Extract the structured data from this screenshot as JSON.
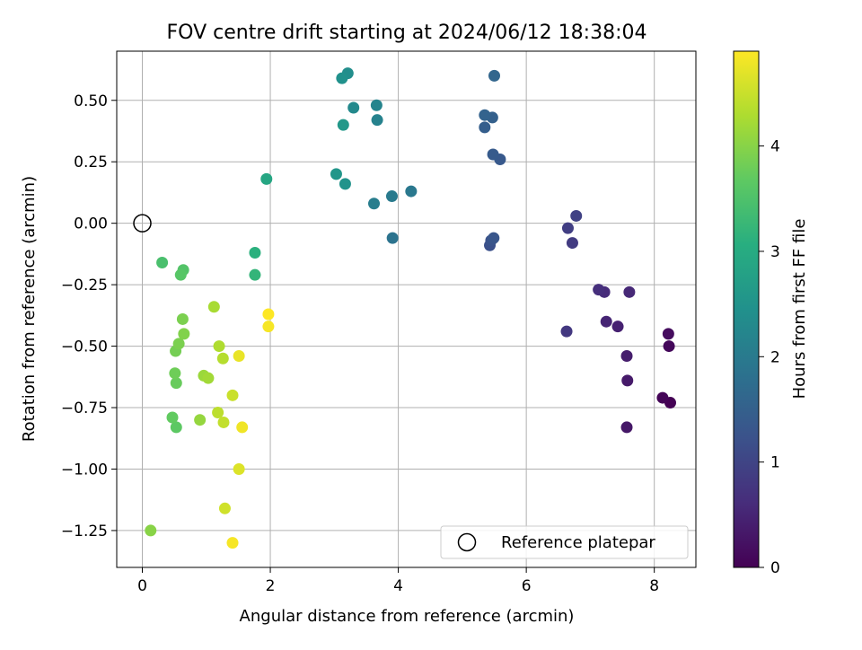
{
  "chart_data": {
    "type": "scatter",
    "title": "FOV centre drift starting at 2024/06/12 18:38:04",
    "xlabel": "Angular distance from reference (arcmin)",
    "ylabel": "Rotation from reference (arcmin)",
    "xlim": [
      -0.4,
      8.65
    ],
    "ylim": [
      -1.4,
      0.7
    ],
    "xticks": [
      0,
      2,
      4,
      6,
      8
    ],
    "xtick_labels": [
      "0",
      "2",
      "4",
      "6",
      "8"
    ],
    "yticks": [
      0.5,
      0.25,
      0.0,
      -0.25,
      -0.5,
      -0.75,
      -1.0,
      -1.25
    ],
    "ytick_labels": [
      "0.50",
      "0.25",
      "0.00",
      "−0.25",
      "−0.50",
      "−0.75",
      "−1.00",
      "−1.25"
    ],
    "grid": true,
    "legend": {
      "position": "lower-right",
      "entries": [
        "Reference platepar"
      ]
    },
    "colorbar": {
      "label": "Hours from first FF file",
      "colormap": "viridis",
      "range": [
        0,
        4.9
      ],
      "ticks": [
        0,
        1,
        2,
        3,
        4
      ],
      "tick_labels": [
        "0",
        "1",
        "2",
        "3",
        "4"
      ]
    },
    "reference_point": {
      "x": 0.0,
      "y": 0.0
    },
    "points": [
      {
        "x": 8.25,
        "y": -0.73,
        "c": 0.0
      },
      {
        "x": 8.13,
        "y": -0.71,
        "c": 0.05
      },
      {
        "x": 8.23,
        "y": -0.5,
        "c": 0.1
      },
      {
        "x": 8.22,
        "y": -0.45,
        "c": 0.15
      },
      {
        "x": 7.57,
        "y": -0.83,
        "c": 0.3
      },
      {
        "x": 7.58,
        "y": -0.64,
        "c": 0.35
      },
      {
        "x": 7.57,
        "y": -0.54,
        "c": 0.4
      },
      {
        "x": 7.43,
        "y": -0.42,
        "c": 0.45
      },
      {
        "x": 7.25,
        "y": -0.4,
        "c": 0.5
      },
      {
        "x": 7.61,
        "y": -0.28,
        "c": 0.55
      },
      {
        "x": 7.22,
        "y": -0.28,
        "c": 0.6
      },
      {
        "x": 7.13,
        "y": -0.27,
        "c": 0.65
      },
      {
        "x": 6.63,
        "y": -0.44,
        "c": 0.8
      },
      {
        "x": 6.72,
        "y": -0.08,
        "c": 0.85
      },
      {
        "x": 6.65,
        "y": -0.02,
        "c": 0.9
      },
      {
        "x": 6.78,
        "y": 0.03,
        "c": 0.95
      },
      {
        "x": 5.43,
        "y": -0.09,
        "c": 1.2
      },
      {
        "x": 5.45,
        "y": -0.07,
        "c": 1.25
      },
      {
        "x": 5.49,
        "y": -0.06,
        "c": 1.3
      },
      {
        "x": 5.59,
        "y": 0.26,
        "c": 1.35
      },
      {
        "x": 5.48,
        "y": 0.28,
        "c": 1.4
      },
      {
        "x": 5.35,
        "y": 0.39,
        "c": 1.45
      },
      {
        "x": 5.47,
        "y": 0.43,
        "c": 1.5
      },
      {
        "x": 5.35,
        "y": 0.44,
        "c": 1.55
      },
      {
        "x": 5.5,
        "y": 0.6,
        "c": 1.6
      },
      {
        "x": 3.91,
        "y": -0.06,
        "c": 1.85
      },
      {
        "x": 4.2,
        "y": 0.13,
        "c": 1.95
      },
      {
        "x": 3.9,
        "y": 0.11,
        "c": 2.0
      },
      {
        "x": 3.62,
        "y": 0.08,
        "c": 2.05
      },
      {
        "x": 3.67,
        "y": 0.42,
        "c": 2.15
      },
      {
        "x": 3.66,
        "y": 0.48,
        "c": 2.2
      },
      {
        "x": 3.3,
        "y": 0.47,
        "c": 2.3
      },
      {
        "x": 3.21,
        "y": 0.61,
        "c": 2.4
      },
      {
        "x": 3.12,
        "y": 0.59,
        "c": 2.45
      },
      {
        "x": 3.17,
        "y": 0.16,
        "c": 2.5
      },
      {
        "x": 3.03,
        "y": 0.2,
        "c": 2.55
      },
      {
        "x": 3.14,
        "y": 0.4,
        "c": 2.6
      },
      {
        "x": 1.94,
        "y": 0.18,
        "c": 2.9
      },
      {
        "x": 1.76,
        "y": -0.12,
        "c": 3.1
      },
      {
        "x": 1.76,
        "y": -0.21,
        "c": 3.2
      },
      {
        "x": 0.31,
        "y": -0.16,
        "c": 3.45
      },
      {
        "x": 0.64,
        "y": -0.19,
        "c": 3.55
      },
      {
        "x": 0.6,
        "y": -0.21,
        "c": 3.6
      },
      {
        "x": 0.53,
        "y": -0.83,
        "c": 3.65
      },
      {
        "x": 0.47,
        "y": -0.79,
        "c": 3.7
      },
      {
        "x": 0.53,
        "y": -0.65,
        "c": 3.75
      },
      {
        "x": 0.51,
        "y": -0.61,
        "c": 3.8
      },
      {
        "x": 0.52,
        "y": -0.52,
        "c": 3.85
      },
      {
        "x": 0.57,
        "y": -0.49,
        "c": 3.9
      },
      {
        "x": 0.65,
        "y": -0.45,
        "c": 3.95
      },
      {
        "x": 0.63,
        "y": -0.39,
        "c": 3.9
      },
      {
        "x": 0.13,
        "y": -1.25,
        "c": 4.0
      },
      {
        "x": 0.9,
        "y": -0.8,
        "c": 4.1
      },
      {
        "x": 0.96,
        "y": -0.62,
        "c": 4.15
      },
      {
        "x": 1.03,
        "y": -0.63,
        "c": 4.2
      },
      {
        "x": 1.12,
        "y": -0.34,
        "c": 4.25
      },
      {
        "x": 1.2,
        "y": -0.5,
        "c": 4.3
      },
      {
        "x": 1.26,
        "y": -0.55,
        "c": 4.35
      },
      {
        "x": 1.18,
        "y": -0.77,
        "c": 4.4
      },
      {
        "x": 1.27,
        "y": -0.81,
        "c": 4.45
      },
      {
        "x": 1.41,
        "y": -0.7,
        "c": 4.5
      },
      {
        "x": 1.29,
        "y": -1.16,
        "c": 4.55
      },
      {
        "x": 1.51,
        "y": -1.0,
        "c": 4.65
      },
      {
        "x": 1.51,
        "y": -0.54,
        "c": 4.75
      },
      {
        "x": 1.56,
        "y": -0.83,
        "c": 4.8
      },
      {
        "x": 1.41,
        "y": -1.3,
        "c": 4.85
      },
      {
        "x": 1.97,
        "y": -0.42,
        "c": 4.85
      },
      {
        "x": 1.97,
        "y": -0.37,
        "c": 4.9
      }
    ]
  }
}
